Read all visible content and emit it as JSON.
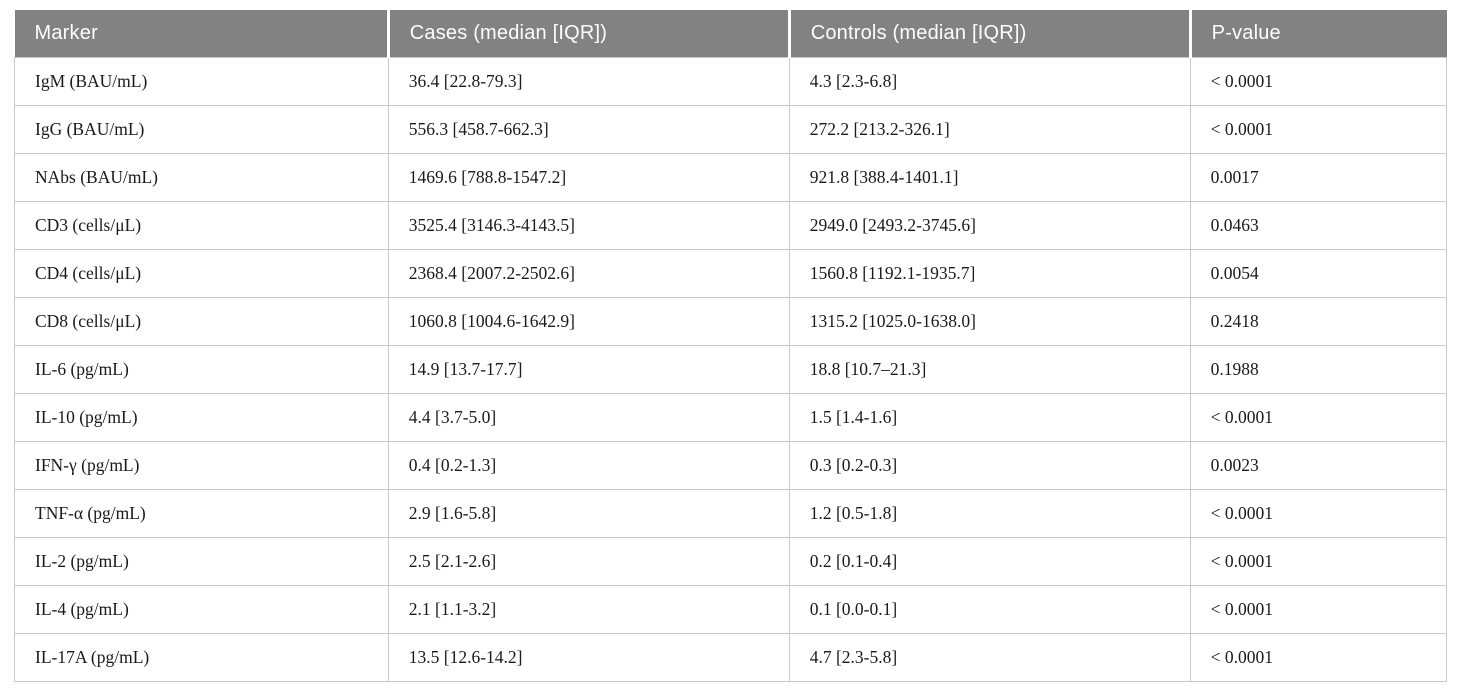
{
  "table": {
    "columns": [
      "Marker",
      "Cases (median [IQR])",
      "Controls (median [IQR])",
      "P-value"
    ],
    "rows": [
      [
        "IgM (BAU/mL)",
        "36.4 [22.8-79.3]",
        "4.3 [2.3-6.8]",
        "< 0.0001"
      ],
      [
        "IgG (BAU/mL)",
        "556.3 [458.7-662.3]",
        "272.2 [213.2-326.1]",
        "< 0.0001"
      ],
      [
        "NAbs (BAU/mL)",
        "1469.6 [788.8-1547.2]",
        "921.8 [388.4-1401.1]",
        "0.0017"
      ],
      [
        "CD3 (cells/μL)",
        "3525.4 [3146.3-4143.5]",
        "2949.0 [2493.2-3745.6]",
        "0.0463"
      ],
      [
        "CD4 (cells/μL)",
        "2368.4 [2007.2-2502.6]",
        "1560.8 [1192.1-1935.7]",
        "0.0054"
      ],
      [
        "CD8 (cells/μL)",
        "1060.8 [1004.6-1642.9]",
        "1315.2 [1025.0-1638.0]",
        "0.2418"
      ],
      [
        "IL-6 (pg/mL)",
        "14.9 [13.7-17.7]",
        "18.8 [10.7–21.3]",
        "0.1988"
      ],
      [
        "IL-10 (pg/mL)",
        "4.4 [3.7-5.0]",
        "1.5 [1.4-1.6]",
        "< 0.0001"
      ],
      [
        "IFN-γ (pg/mL)",
        "0.4 [0.2-1.3]",
        "0.3 [0.2-0.3]",
        "0.0023"
      ],
      [
        "TNF-α (pg/mL)",
        "2.9 [1.6-5.8]",
        "1.2 [0.5-1.8]",
        "< 0.0001"
      ],
      [
        "IL-2 (pg/mL)",
        "2.5 [2.1-2.6]",
        "0.2 [0.1-0.4]",
        "< 0.0001"
      ],
      [
        "IL-4 (pg/mL)",
        "2.1 [1.1-3.2]",
        "0.1 [0.0-0.1]",
        "< 0.0001"
      ],
      [
        "IL-17A (pg/mL)",
        "13.5 [12.6-14.2]",
        "4.7 [2.3-5.8]",
        "< 0.0001"
      ]
    ]
  },
  "colors": {
    "header_background": "#828282",
    "header_text": "#fdfdfd",
    "body_text": "#1a1a1a",
    "cell_border": "#c9c9c9",
    "header_separator": "#ffffff",
    "page_background": "#ffffff"
  }
}
